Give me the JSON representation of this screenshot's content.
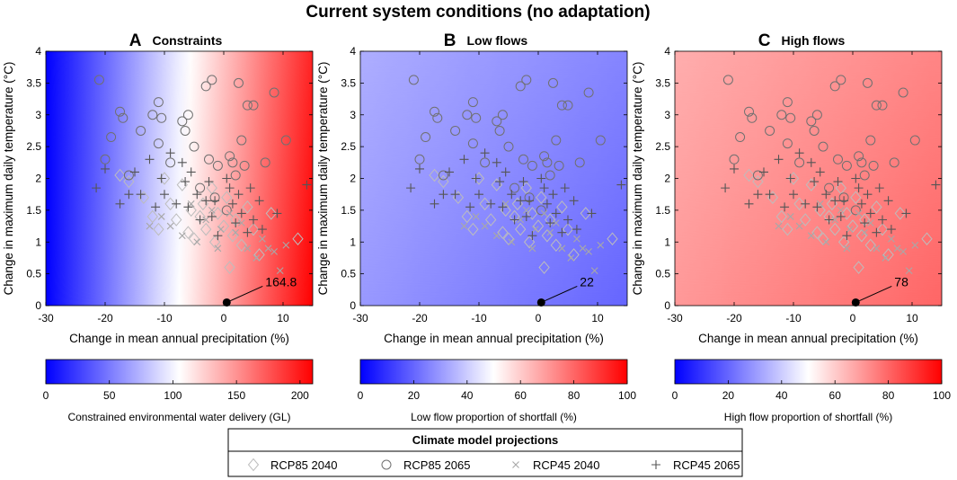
{
  "figure_title": "Current system conditions (no adaptation)",
  "legend": {
    "title": "Climate model projections",
    "items": [
      {
        "label": "RCP85 2040",
        "marker": "diamond"
      },
      {
        "label": "RCP85 2065",
        "marker": "circle"
      },
      {
        "label": "RCP45 2040",
        "marker": "x"
      },
      {
        "label": "RCP45 2065",
        "marker": "plus"
      }
    ]
  },
  "chart_data": [
    {
      "type": "scatter",
      "letter": "A",
      "title": "Constraints",
      "xlabel": "Change in mean annual precipitation (%)",
      "ylabel": "Change in maximum daily temperature (°C)",
      "xlim": [
        -30,
        15
      ],
      "ylim": [
        0,
        4
      ],
      "xticks": [
        -30,
        -20,
        -10,
        0,
        10
      ],
      "yticks": [
        0,
        0.5,
        1,
        1.5,
        2,
        2.5,
        3,
        3.5,
        4
      ],
      "current_point": {
        "x": 0.5,
        "y": 0.05,
        "label": "164.8"
      },
      "surface_gradient": [
        {
          "x": -30,
          "y": 0,
          "value": 0
        },
        {
          "x": 15,
          "y": 0,
          "value": 210
        },
        {
          "x": -30,
          "y": 4,
          "value": 0
        },
        {
          "x": 15,
          "y": 4,
          "value": 195
        }
      ],
      "colorbar": {
        "label": "Constrained environmental water delivery (GL)",
        "min": 0,
        "max": 210,
        "ticks": [
          0,
          50,
          100,
          150,
          200
        ]
      }
    },
    {
      "type": "scatter",
      "letter": "B",
      "title": "Low flows",
      "xlabel": "Change in mean annual precipitation (%)",
      "ylabel": "Change in maximum daily temperature (°C)",
      "xlim": [
        -30,
        15
      ],
      "ylim": [
        0,
        4
      ],
      "xticks": [
        -30,
        -20,
        -10,
        0,
        10
      ],
      "yticks": [
        0,
        0.5,
        1,
        1.5,
        2,
        2.5,
        3,
        3.5,
        4
      ],
      "current_point": {
        "x": 0.5,
        "y": 0.05,
        "label": "22"
      },
      "surface_gradient": [
        {
          "x": -30,
          "y": 0,
          "value": 30
        },
        {
          "x": 15,
          "y": 0,
          "value": 20
        },
        {
          "x": -30,
          "y": 4,
          "value": 34
        },
        {
          "x": 15,
          "y": 4,
          "value": 26
        }
      ],
      "colorbar": {
        "label": "Low flow proportion of shortfall (%)",
        "min": 0,
        "max": 100,
        "ticks": [
          0,
          20,
          40,
          60,
          80,
          100
        ]
      }
    },
    {
      "type": "scatter",
      "letter": "C",
      "title": "High flows",
      "xlabel": "Change in mean annual precipitation (%)",
      "ylabel": "Change in maximum daily temperature (°C)",
      "xlim": [
        -30,
        15
      ],
      "ylim": [
        0,
        4
      ],
      "xticks": [
        -30,
        -20,
        -10,
        0,
        10
      ],
      "yticks": [
        0,
        0.5,
        1,
        1.5,
        2,
        2.5,
        3,
        3.5,
        4
      ],
      "current_point": {
        "x": 0.5,
        "y": 0.05,
        "label": "78"
      },
      "surface_gradient": [
        {
          "x": -30,
          "y": 0,
          "value": 70
        },
        {
          "x": 15,
          "y": 0,
          "value": 80
        },
        {
          "x": -30,
          "y": 4,
          "value": 66
        },
        {
          "x": 15,
          "y": 4,
          "value": 74
        }
      ],
      "colorbar": {
        "label": "High flow proportion of shortfall (%)",
        "min": 0,
        "max": 100,
        "ticks": [
          0,
          20,
          40,
          60,
          80,
          100
        ]
      }
    }
  ],
  "scatter_series": [
    {
      "name": "RCP85 2040",
      "marker": "diamond",
      "color": "#bdbdbd",
      "points": [
        [
          -17.5,
          2.05
        ],
        [
          -16,
          1.95
        ],
        [
          -13.5,
          1.7
        ],
        [
          -12,
          1.4
        ],
        [
          -11,
          1.2
        ],
        [
          -10,
          2.0
        ],
        [
          -9,
          1.6
        ],
        [
          -8,
          1.35
        ],
        [
          -7,
          1.9
        ],
        [
          -6,
          1.15
        ],
        [
          -5.5,
          1.5
        ],
        [
          -5,
          1.05
        ],
        [
          -4,
          1.4
        ],
        [
          -3.5,
          1.6
        ],
        [
          -3,
          1.2
        ],
        [
          -2,
          1.85
        ],
        [
          -1.5,
          1.0
        ],
        [
          -1,
          1.45
        ],
        [
          0,
          1.25
        ],
        [
          0.5,
          1.7
        ],
        [
          1,
          0.6
        ],
        [
          1.5,
          1.1
        ],
        [
          2,
          1.35
        ],
        [
          3,
          0.95
        ],
        [
          4,
          1.55
        ],
        [
          5,
          1.2
        ],
        [
          6,
          0.8
        ],
        [
          8,
          1.45
        ],
        [
          12.5,
          1.05
        ]
      ]
    },
    {
      "name": "RCP85 2065",
      "marker": "circle",
      "color": "#707070",
      "points": [
        [
          -21,
          3.55
        ],
        [
          -20,
          2.3
        ],
        [
          -19,
          2.65
        ],
        [
          -17.5,
          3.05
        ],
        [
          -17,
          2.95
        ],
        [
          -16,
          2.05
        ],
        [
          -14,
          2.75
        ],
        [
          -12,
          3.0
        ],
        [
          -11,
          3.2
        ],
        [
          -11,
          2.55
        ],
        [
          -10.5,
          2.95
        ],
        [
          -9,
          2.25
        ],
        [
          -7,
          2.9
        ],
        [
          -6.5,
          2.75
        ],
        [
          -6,
          3.0
        ],
        [
          -5,
          2.5
        ],
        [
          -4,
          1.85
        ],
        [
          -3,
          3.45
        ],
        [
          -2.5,
          2.3
        ],
        [
          -2,
          3.55
        ],
        [
          -1.5,
          1.7
        ],
        [
          -1,
          2.2
        ],
        [
          0.5,
          1.5
        ],
        [
          1,
          2.35
        ],
        [
          1.5,
          2.25
        ],
        [
          2,
          2.05
        ],
        [
          2.5,
          3.5
        ],
        [
          3,
          2.6
        ],
        [
          3.5,
          2.2
        ],
        [
          4,
          3.15
        ],
        [
          5,
          3.15
        ],
        [
          7,
          2.25
        ],
        [
          8.5,
          3.35
        ],
        [
          10.5,
          2.6
        ]
      ]
    },
    {
      "name": "RCP45 2040",
      "marker": "x",
      "color": "#a8a8a8",
      "points": [
        [
          -12.5,
          1.25
        ],
        [
          -10.5,
          1.4
        ],
        [
          -9,
          1.25
        ],
        [
          -7,
          1.1
        ],
        [
          -5.5,
          1.6
        ],
        [
          -4.5,
          1.0
        ],
        [
          -3,
          1.35
        ],
        [
          -2,
          1.5
        ],
        [
          -1,
          0.9
        ],
        [
          -0.5,
          1.2
        ],
        [
          1,
          1.45
        ],
        [
          2,
          1.15
        ],
        [
          3,
          1.3
        ],
        [
          4,
          0.9
        ],
        [
          5.5,
          0.75
        ],
        [
          6.5,
          1.05
        ],
        [
          7.5,
          0.9
        ],
        [
          8.5,
          0.85
        ],
        [
          9.5,
          0.55
        ],
        [
          10.5,
          0.95
        ]
      ]
    },
    {
      "name": "RCP45 2065",
      "marker": "plus",
      "color": "#555555",
      "points": [
        [
          -21.5,
          1.85
        ],
        [
          -20,
          2.15
        ],
        [
          -17.5,
          1.6
        ],
        [
          -16,
          1.75
        ],
        [
          -15,
          2.1
        ],
        [
          -14,
          1.75
        ],
        [
          -12.5,
          2.3
        ],
        [
          -11.5,
          1.55
        ],
        [
          -10.5,
          2.0
        ],
        [
          -10,
          1.75
        ],
        [
          -9,
          2.4
        ],
        [
          -8,
          1.6
        ],
        [
          -7,
          2.25
        ],
        [
          -6.5,
          1.95
        ],
        [
          -6,
          1.55
        ],
        [
          -5.5,
          2.1
        ],
        [
          -4.5,
          1.75
        ],
        [
          -4,
          1.35
        ],
        [
          -3,
          1.65
        ],
        [
          -2.5,
          1.95
        ],
        [
          -2,
          1.4
        ],
        [
          -1.5,
          1.65
        ],
        [
          -1,
          1.1
        ],
        [
          0.5,
          2.0
        ],
        [
          1,
          1.85
        ],
        [
          1.5,
          1.6
        ],
        [
          2,
          1.3
        ],
        [
          2.5,
          1.75
        ],
        [
          3,
          1.45
        ],
        [
          4,
          1.15
        ],
        [
          4.5,
          1.85
        ],
        [
          5,
          1.35
        ],
        [
          6,
          1.65
        ],
        [
          6.5,
          1.2
        ],
        [
          9,
          1.45
        ],
        [
          14,
          1.9
        ]
      ]
    }
  ]
}
